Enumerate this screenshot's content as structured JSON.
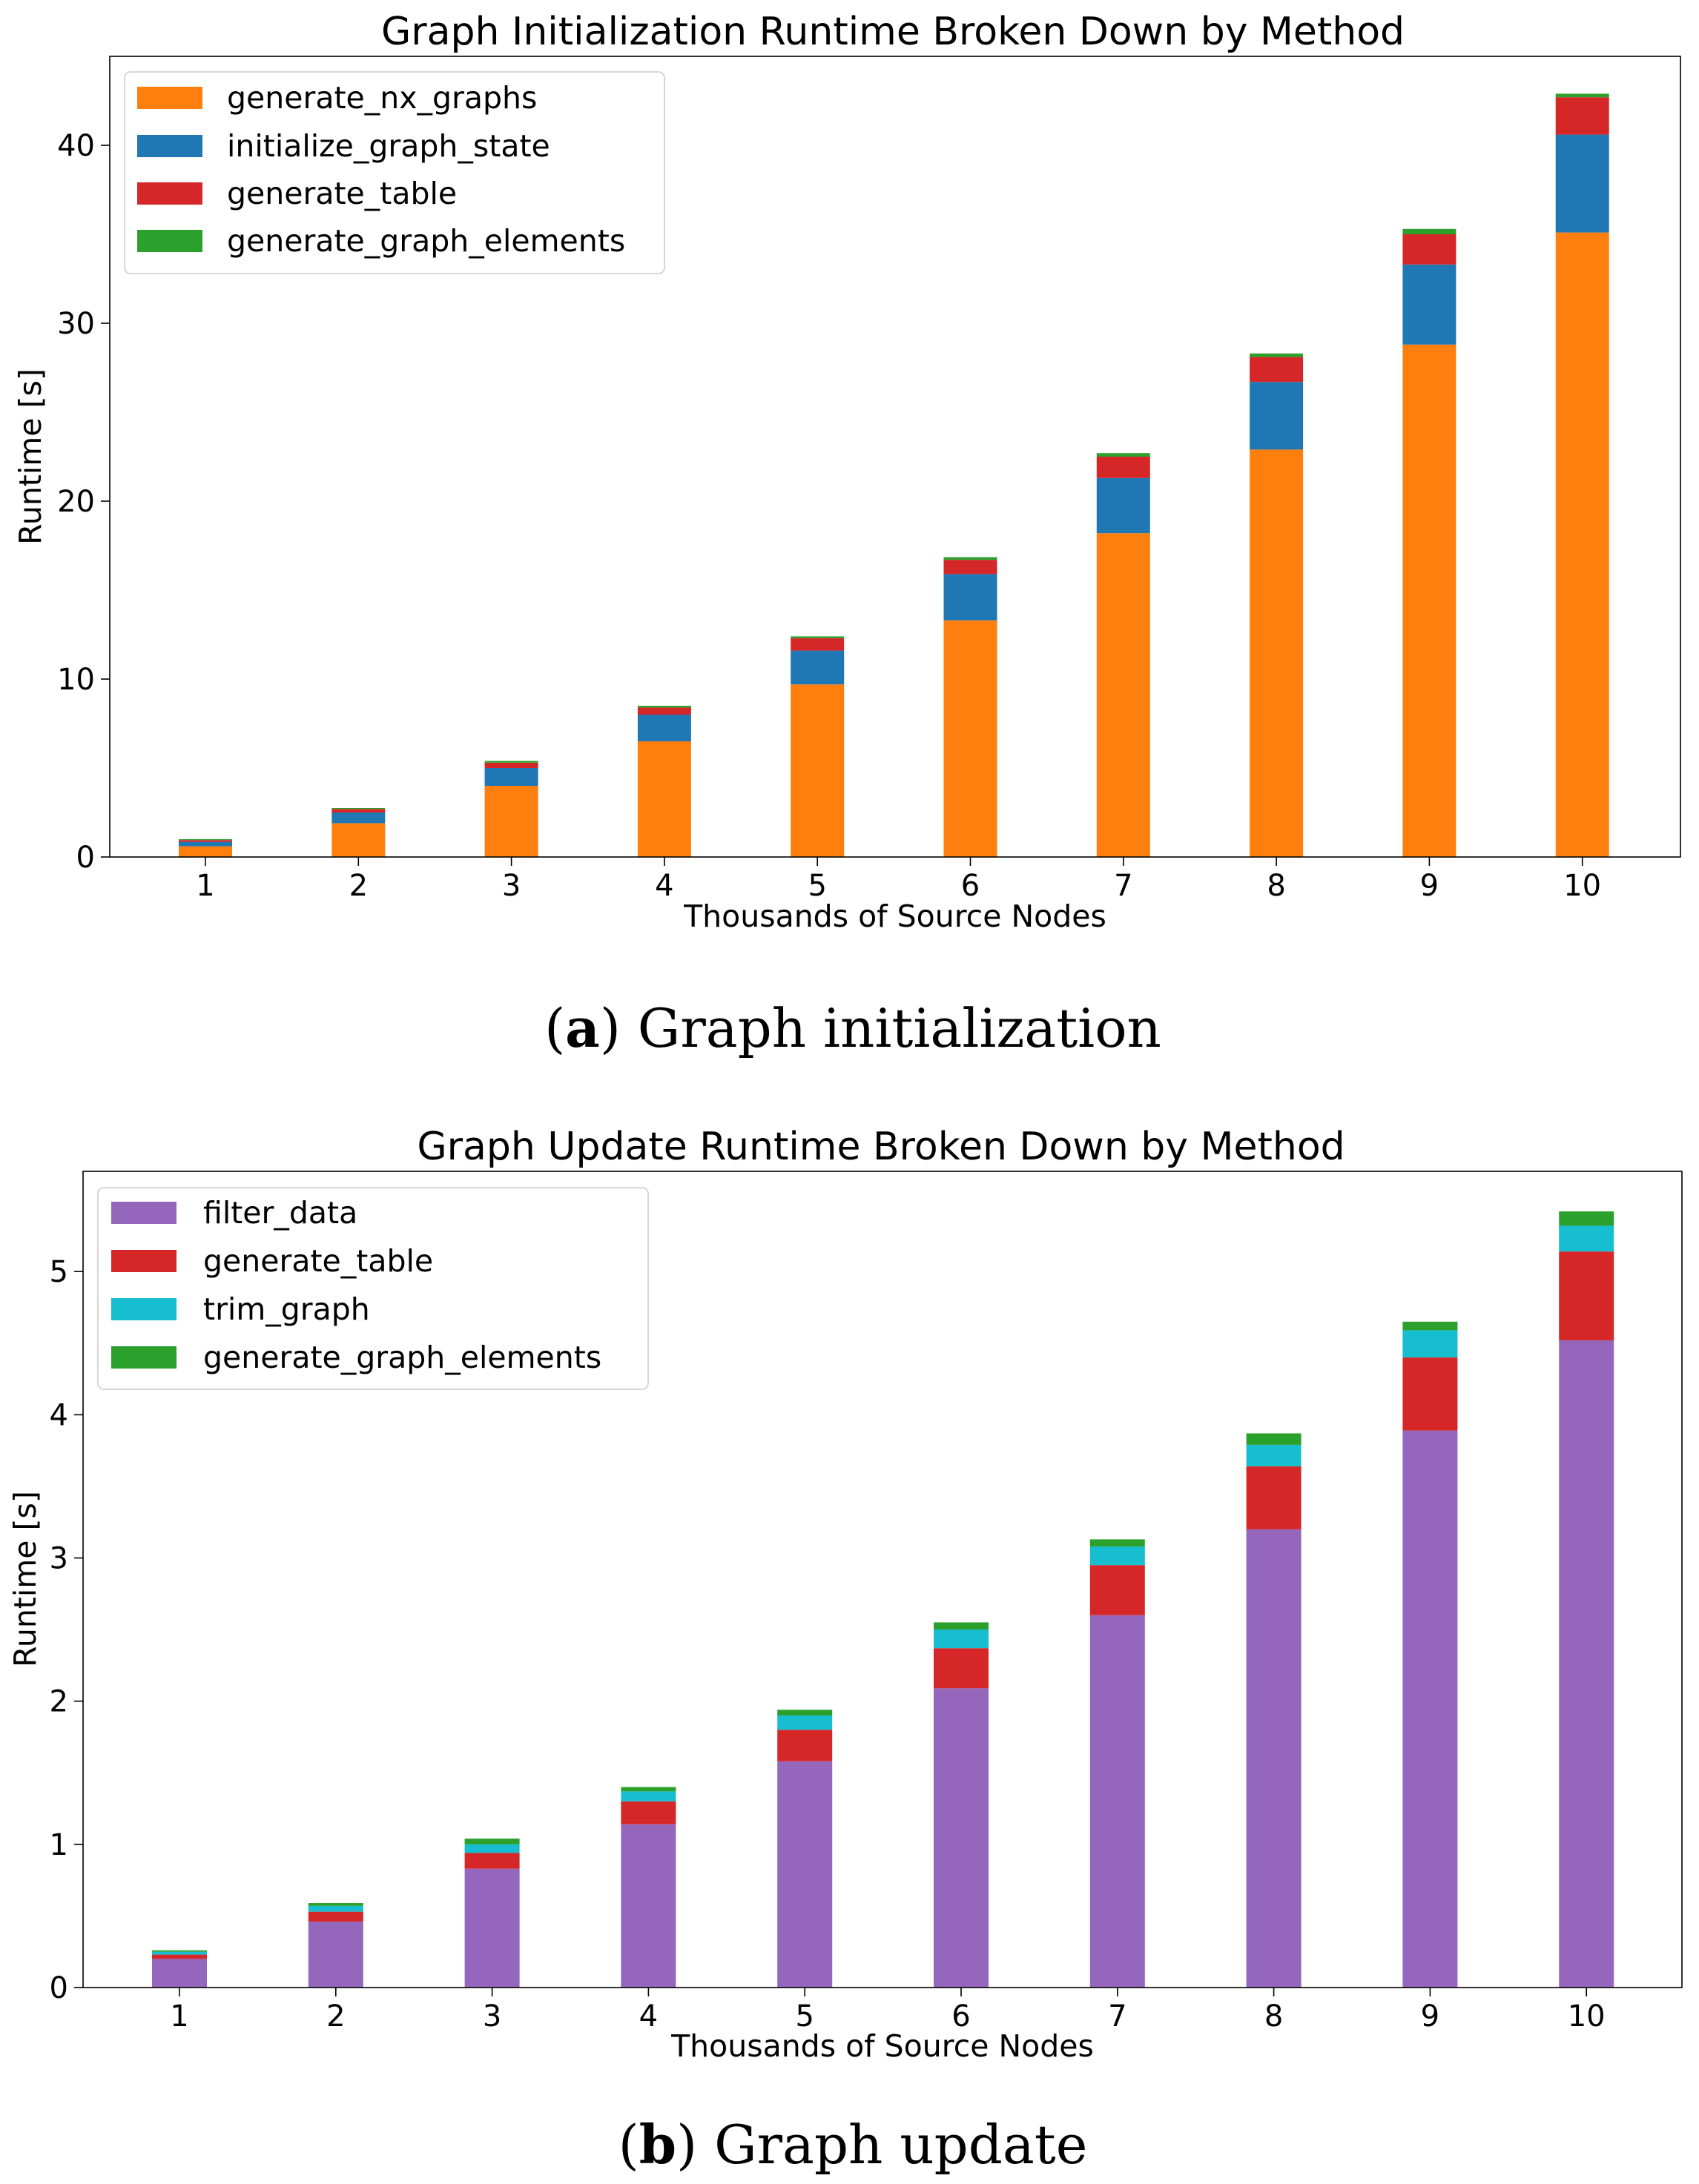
{
  "chart_data": [
    {
      "type": "bar",
      "stacked": true,
      "title": "Graph Initialization Runtime Broken Down by Method",
      "xlabel": "Thousands of Source Nodes",
      "ylabel": "Runtime [s]",
      "categories": [
        "1",
        "2",
        "3",
        "4",
        "5",
        "6",
        "7",
        "8",
        "9",
        "10"
      ],
      "ylim": [
        0,
        45
      ],
      "yticks": [
        0,
        10,
        20,
        30,
        40
      ],
      "legend_position": "top-left",
      "caption_letter": "a",
      "caption_text": "Graph initialization",
      "series": [
        {
          "name": "generate_nx_graphs",
          "color": "#ff7f0e",
          "values": [
            0.6,
            1.9,
            4.0,
            6.5,
            9.7,
            13.3,
            18.2,
            22.9,
            28.8,
            35.1
          ]
        },
        {
          "name": "initialize_graph_state",
          "color": "#1f77b4",
          "values": [
            0.25,
            0.6,
            1.0,
            1.5,
            1.9,
            2.6,
            3.1,
            3.8,
            4.5,
            5.5
          ]
        },
        {
          "name": "generate_table",
          "color": "#d62728",
          "values": [
            0.1,
            0.2,
            0.3,
            0.4,
            0.7,
            0.8,
            1.2,
            1.4,
            1.7,
            2.1
          ]
        },
        {
          "name": "generate_graph_elements",
          "color": "#2ca02c",
          "values": [
            0.05,
            0.05,
            0.1,
            0.1,
            0.1,
            0.15,
            0.2,
            0.2,
            0.3,
            0.2
          ]
        }
      ]
    },
    {
      "type": "bar",
      "stacked": true,
      "title": "Graph Update Runtime Broken Down by Method",
      "xlabel": "Thousands of Source Nodes",
      "ylabel": "Runtime [s]",
      "categories": [
        "1",
        "2",
        "3",
        "4",
        "5",
        "6",
        "7",
        "8",
        "9",
        "10"
      ],
      "ylim": [
        0,
        5.7
      ],
      "yticks": [
        0,
        1,
        2,
        3,
        4,
        5
      ],
      "legend_position": "top-left",
      "caption_letter": "b",
      "caption_text": "Graph update",
      "series": [
        {
          "name": "filter_data",
          "color": "#9467bd",
          "values": [
            0.2,
            0.46,
            0.83,
            1.14,
            1.58,
            2.09,
            2.6,
            3.2,
            3.89,
            4.52
          ]
        },
        {
          "name": "generate_table",
          "color": "#d62728",
          "values": [
            0.03,
            0.07,
            0.11,
            0.16,
            0.22,
            0.28,
            0.35,
            0.44,
            0.51,
            0.62
          ]
        },
        {
          "name": "trim_graph",
          "color": "#17becf",
          "values": [
            0.02,
            0.04,
            0.06,
            0.07,
            0.1,
            0.13,
            0.13,
            0.15,
            0.19,
            0.18
          ]
        },
        {
          "name": "generate_graph_elements",
          "color": "#2ca02c",
          "values": [
            0.01,
            0.02,
            0.04,
            0.03,
            0.04,
            0.05,
            0.05,
            0.08,
            0.06,
            0.1
          ]
        }
      ]
    }
  ]
}
